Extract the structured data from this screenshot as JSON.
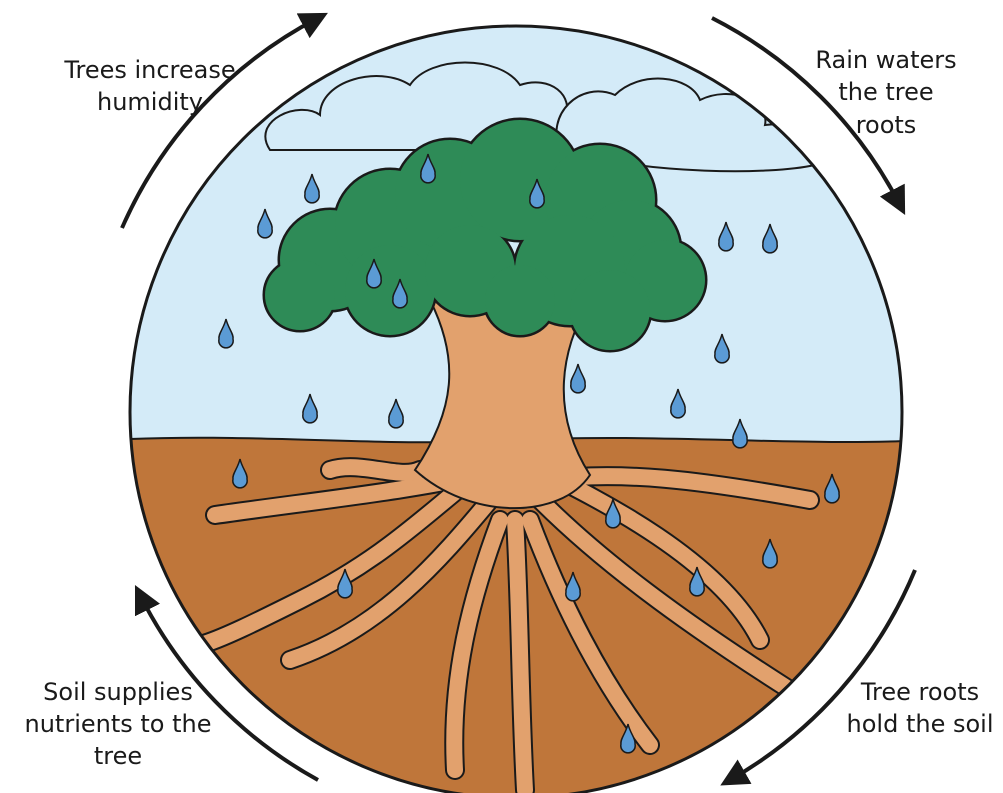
{
  "labels": [
    {
      "lines": [
        "Trees increase",
        "humidity"
      ]
    },
    {
      "lines": [
        "Rain waters",
        "the tree",
        "roots"
      ]
    },
    {
      "lines": [
        "Tree roots",
        "hold the soil"
      ]
    },
    {
      "lines": [
        "Soil supplies",
        "nutrients to the",
        "tree"
      ]
    }
  ]
}
